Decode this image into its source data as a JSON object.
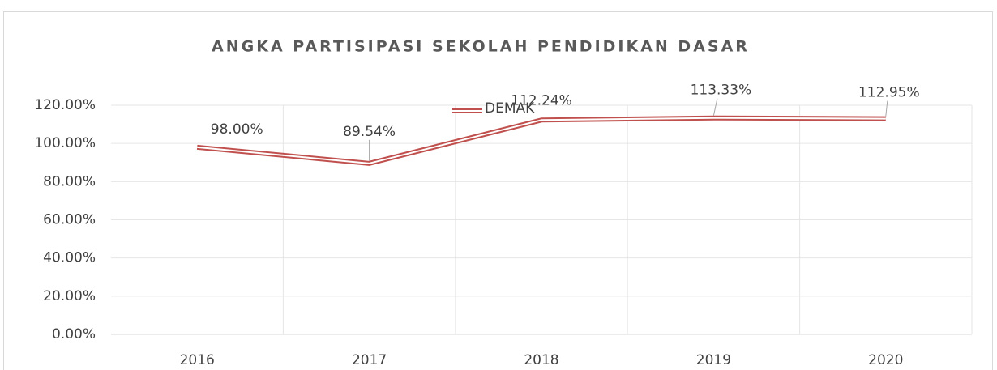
{
  "chart_data": {
    "type": "line",
    "title": "ANGKA PARTISIPASI SEKOLAH PENDIDIKAN DASAR",
    "categories": [
      "2016",
      "2017",
      "2018",
      "2019",
      "2020"
    ],
    "series": [
      {
        "name": "DEMAK",
        "color": "#c0504d",
        "values": [
          98.0,
          89.54,
          112.24,
          113.33,
          112.95
        ],
        "value_labels": [
          "98.00%",
          "89.54%",
          "112.24%",
          "113.33%",
          "112.95%"
        ]
      }
    ],
    "ylim": [
      0,
      120
    ],
    "yticks": [
      {
        "value": 0,
        "label": "0.00%"
      },
      {
        "value": 20,
        "label": "20.00%"
      },
      {
        "value": 40,
        "label": "40.00%"
      },
      {
        "value": 60,
        "label": "60.00%"
      },
      {
        "value": 80,
        "label": "80.00%"
      },
      {
        "value": 100,
        "label": "100.00%"
      },
      {
        "value": 120,
        "label": "120.00%"
      }
    ],
    "grid": true,
    "legend": "top"
  }
}
